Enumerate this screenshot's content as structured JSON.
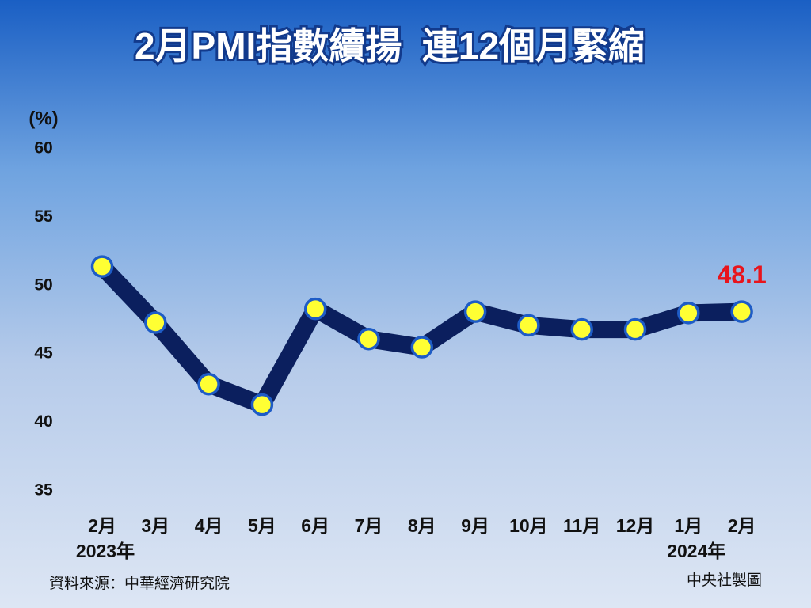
{
  "chart_data": {
    "type": "line",
    "title": "2月PMI指數續揚  連12個月緊縮",
    "y_label": "(%)",
    "categories": [
      "2月",
      "3月",
      "4月",
      "5月",
      "6月",
      "7月",
      "8月",
      "9月",
      "10月",
      "11月",
      "12月",
      "1月",
      "2月"
    ],
    "years": [
      "2023年",
      null,
      null,
      null,
      null,
      null,
      null,
      null,
      null,
      null,
      null,
      "2024年",
      null
    ],
    "values": [
      51.4,
      47.3,
      42.8,
      41.3,
      48.3,
      46.1,
      45.5,
      48.1,
      47.1,
      46.8,
      46.8,
      48.0,
      48.1
    ],
    "color": "#0b1f5e",
    "marker_color": "#ffff33",
    "ylim": [
      35,
      60
    ],
    "yticks": [
      35,
      40,
      45,
      50,
      55,
      60
    ],
    "grid": false,
    "source": "資料來源：中華經濟研究院",
    "credit": "中央社製圖"
  }
}
